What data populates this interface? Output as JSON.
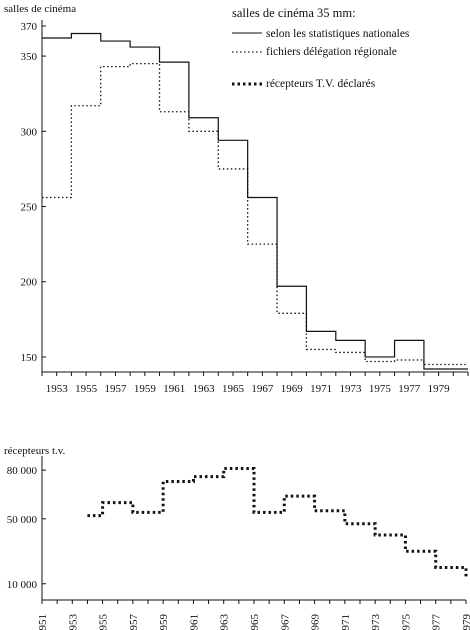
{
  "chart_data": [
    {
      "type": "line",
      "step": true,
      "ylabel": "salles de cinéma",
      "ylim": [
        140,
        370
      ],
      "xlim": [
        1952,
        1981
      ],
      "y_ticks": [
        370,
        350,
        300,
        250,
        200,
        150
      ],
      "x_ticks": [
        1953,
        1955,
        1957,
        1959,
        1961,
        1963,
        1965,
        1967,
        1969,
        1971,
        1973,
        1975,
        1977,
        1979
      ],
      "legend": {
        "title": "salles de cinéma 35 mm:",
        "placement": "top-right"
      },
      "series": [
        {
          "name": "selon les statistiques nationales",
          "style": "solid",
          "x": [
            1952,
            1954,
            1956,
            1958,
            1960,
            1962,
            1964,
            1966,
            1968,
            1970,
            1972,
            1974,
            1976,
            1978,
            1981
          ],
          "y": [
            362,
            365,
            360,
            356,
            346,
            309,
            294,
            256,
            197,
            167,
            161,
            150,
            161,
            142,
            142
          ]
        },
        {
          "name": "fichiers délégation régionale",
          "style": "dotted",
          "x": [
            1952,
            1954,
            1956,
            1958,
            1960,
            1962,
            1964,
            1966,
            1968,
            1970,
            1972,
            1974,
            1976,
            1978,
            1981
          ],
          "y": [
            256,
            317,
            343,
            345,
            313,
            300,
            275,
            225,
            179,
            155,
            153,
            147,
            148,
            145,
            145
          ]
        },
        {
          "name": "récepteurs T.V. déclarés",
          "style": "heavy-dotted",
          "legend_only": true,
          "values": []
        }
      ]
    },
    {
      "type": "line",
      "step": true,
      "ylabel": "récepteurs t.v.",
      "y_ticks": [
        80000,
        50000,
        10000
      ],
      "y_tick_labels": [
        "80 000",
        "50 000",
        "10 000"
      ],
      "ylim": [
        0,
        85000
      ],
      "xlim": [
        1951,
        1979
      ],
      "x_ticks": [
        1951,
        1953,
        1955,
        1957,
        1959,
        1961,
        1963,
        1965,
        1967,
        1969,
        1971,
        1973,
        1975,
        1977,
        1979
      ],
      "series": [
        {
          "name": "récepteurs T.V. déclarés",
          "style": "heavy-dotted",
          "x": [
            1954,
            1955,
            1957,
            1959,
            1961,
            1963,
            1965,
            1967,
            1969,
            1971,
            1973,
            1975,
            1977,
            1979
          ],
          "y": [
            52000,
            60000,
            54000,
            73000,
            76000,
            81000,
            54000,
            64000,
            55000,
            47000,
            40000,
            30000,
            20000,
            13000
          ]
        }
      ]
    }
  ]
}
